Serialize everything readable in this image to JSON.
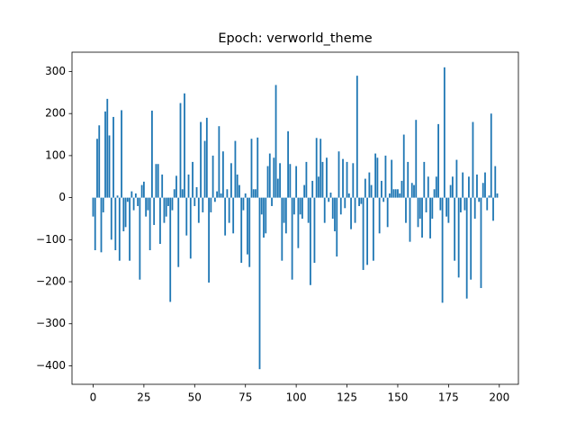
{
  "chart_data": {
    "type": "bar",
    "title": "Epoch: verworld_theme",
    "color": "#1f77b4",
    "x": [
      0,
      1,
      2,
      3,
      4,
      5,
      6,
      7,
      8,
      9,
      10,
      11,
      12,
      13,
      14,
      15,
      16,
      17,
      18,
      19,
      20,
      21,
      22,
      23,
      24,
      25,
      26,
      27,
      28,
      29,
      30,
      31,
      32,
      33,
      34,
      35,
      36,
      37,
      38,
      39,
      40,
      41,
      42,
      43,
      44,
      45,
      46,
      47,
      48,
      49,
      50,
      51,
      52,
      53,
      54,
      55,
      56,
      57,
      58,
      59,
      60,
      61,
      62,
      63,
      64,
      65,
      66,
      67,
      68,
      69,
      70,
      71,
      72,
      73,
      74,
      75,
      76,
      77,
      78,
      79,
      80,
      81,
      82,
      83,
      84,
      85,
      86,
      87,
      88,
      89,
      90,
      91,
      92,
      93,
      94,
      95,
      96,
      97,
      98,
      99,
      100,
      101,
      102,
      103,
      104,
      105,
      106,
      107,
      108,
      109,
      110,
      111,
      112,
      113,
      114,
      115,
      116,
      117,
      118,
      119,
      120,
      121,
      122,
      123,
      124,
      125,
      126,
      127,
      128,
      129,
      130,
      131,
      132,
      133,
      134,
      135,
      136,
      137,
      138,
      139,
      140,
      141,
      142,
      143,
      144,
      145,
      146,
      147,
      148,
      149,
      150,
      151,
      152,
      153,
      154,
      155,
      156,
      157,
      158,
      159,
      160,
      161,
      162,
      163,
      164,
      165,
      166,
      167,
      168,
      169,
      170,
      171,
      172,
      173,
      174,
      175,
      176,
      177,
      178,
      179,
      180,
      181,
      182,
      183,
      184,
      185,
      186,
      187,
      188,
      189,
      190,
      191,
      192,
      193,
      194,
      195,
      196,
      197,
      198,
      199
    ],
    "values": [
      -45,
      -125,
      140,
      172,
      -130,
      -35,
      205,
      235,
      148,
      -100,
      192,
      -125,
      5,
      -150,
      208,
      -80,
      -70,
      -10,
      -150,
      15,
      -30,
      10,
      -20,
      -195,
      30,
      38,
      -45,
      -30,
      -125,
      207,
      -65,
      80,
      80,
      -110,
      55,
      -60,
      -45,
      -20,
      -248,
      -30,
      20,
      52,
      -165,
      225,
      20,
      248,
      -90,
      55,
      -145,
      85,
      -20,
      25,
      -60,
      180,
      -35,
      135,
      190,
      -202,
      -35,
      100,
      -10,
      15,
      170,
      10,
      110,
      -90,
      20,
      -60,
      82,
      -85,
      135,
      55,
      30,
      -155,
      -30,
      10,
      -135,
      -165,
      140,
      20,
      20,
      143,
      -408,
      -40,
      -95,
      -85,
      75,
      105,
      -20,
      95,
      268,
      45,
      82,
      -150,
      -60,
      -85,
      158,
      80,
      -195,
      -40,
      75,
      -120,
      -40,
      -50,
      30,
      85,
      -60,
      -208,
      40,
      -155,
      142,
      50,
      140,
      85,
      -60,
      95,
      -10,
      12,
      -50,
      -80,
      -140,
      110,
      -40,
      92,
      -25,
      85,
      10,
      -75,
      82,
      -60,
      290,
      -20,
      -15,
      -172,
      45,
      -160,
      60,
      30,
      -150,
      105,
      95,
      -85,
      40,
      -10,
      100,
      -70,
      10,
      90,
      20,
      20,
      20,
      10,
      40,
      150,
      -60,
      85,
      -105,
      35,
      30,
      185,
      -70,
      -50,
      -95,
      85,
      -35,
      50,
      -97,
      -50,
      20,
      50,
      175,
      -30,
      -250,
      310,
      -45,
      -60,
      30,
      50,
      -150,
      90,
      -190,
      -35,
      60,
      -30,
      -240,
      50,
      -195,
      180,
      -50,
      55,
      -10,
      -215,
      35,
      60,
      -30,
      5,
      200,
      -55,
      75,
      10
    ],
    "xlim": [
      -10.4,
      209.4
    ],
    "ylim": [
      -444,
      346
    ],
    "xticks": [
      0,
      25,
      50,
      75,
      100,
      125,
      150,
      175,
      200
    ],
    "yticks": [
      {
        "value": -400,
        "label": "−400"
      },
      {
        "value": -300,
        "label": "−300"
      },
      {
        "value": -200,
        "label": "−200"
      },
      {
        "value": -100,
        "label": "−100"
      },
      0,
      100,
      200,
      300
    ]
  }
}
